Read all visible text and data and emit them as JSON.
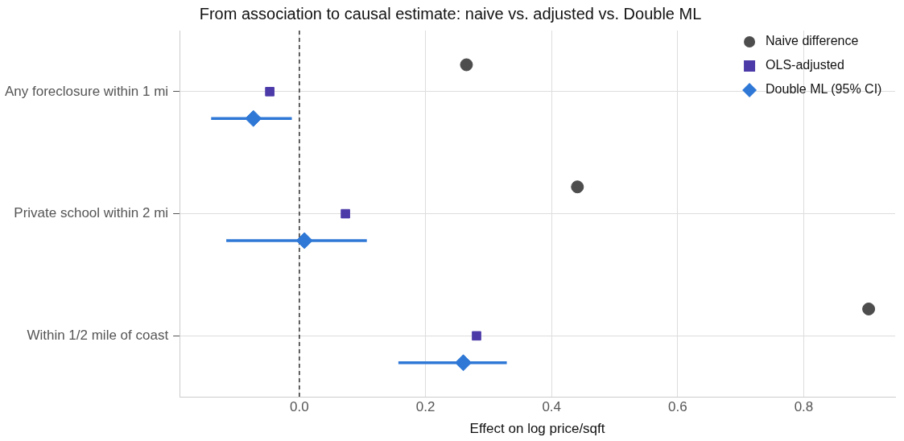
{
  "chart_data": {
    "type": "scatter",
    "orientation": "horizontal",
    "title": "From association to causal estimate: naive vs. adjusted vs. Double ML",
    "xlabel": "Effect on log price/sqft",
    "categories": [
      "Any foreclosure within 1 mi",
      "Private school within 2 mi",
      "Within 1/2 mile of coast"
    ],
    "series": [
      {
        "name": "Naive difference",
        "color": "#4d4d4d",
        "marker": "circle",
        "values": [
          0.265,
          0.441,
          0.903
        ]
      },
      {
        "name": "OLS-adjusted",
        "color": "#4b3aa8",
        "marker": "square",
        "values": [
          -0.047,
          0.073,
          0.281
        ]
      },
      {
        "name": "Double ML (95% CI)",
        "color": "#2f78d6",
        "marker": "diamond",
        "values": [
          -0.073,
          0.008,
          0.26
        ],
        "errors": [
          [
            -0.14,
            -0.012
          ],
          [
            -0.116,
            0.107
          ],
          [
            0.157,
            0.329
          ]
        ]
      }
    ],
    "xlim": [
      -0.19,
      0.945
    ],
    "xticks": [
      {
        "value": 0,
        "label": "0.0"
      },
      {
        "value": 0.2,
        "label": "0.2"
      },
      {
        "value": 0.4,
        "label": "0.4"
      },
      {
        "value": 0.6,
        "label": "0.6"
      },
      {
        "value": 0.8,
        "label": "0.8"
      }
    ],
    "ref_lines": [
      {
        "axis": "x",
        "value": 0,
        "color": "#000000",
        "line_style": "dashed"
      }
    ],
    "grid": true,
    "legend": "top right"
  }
}
